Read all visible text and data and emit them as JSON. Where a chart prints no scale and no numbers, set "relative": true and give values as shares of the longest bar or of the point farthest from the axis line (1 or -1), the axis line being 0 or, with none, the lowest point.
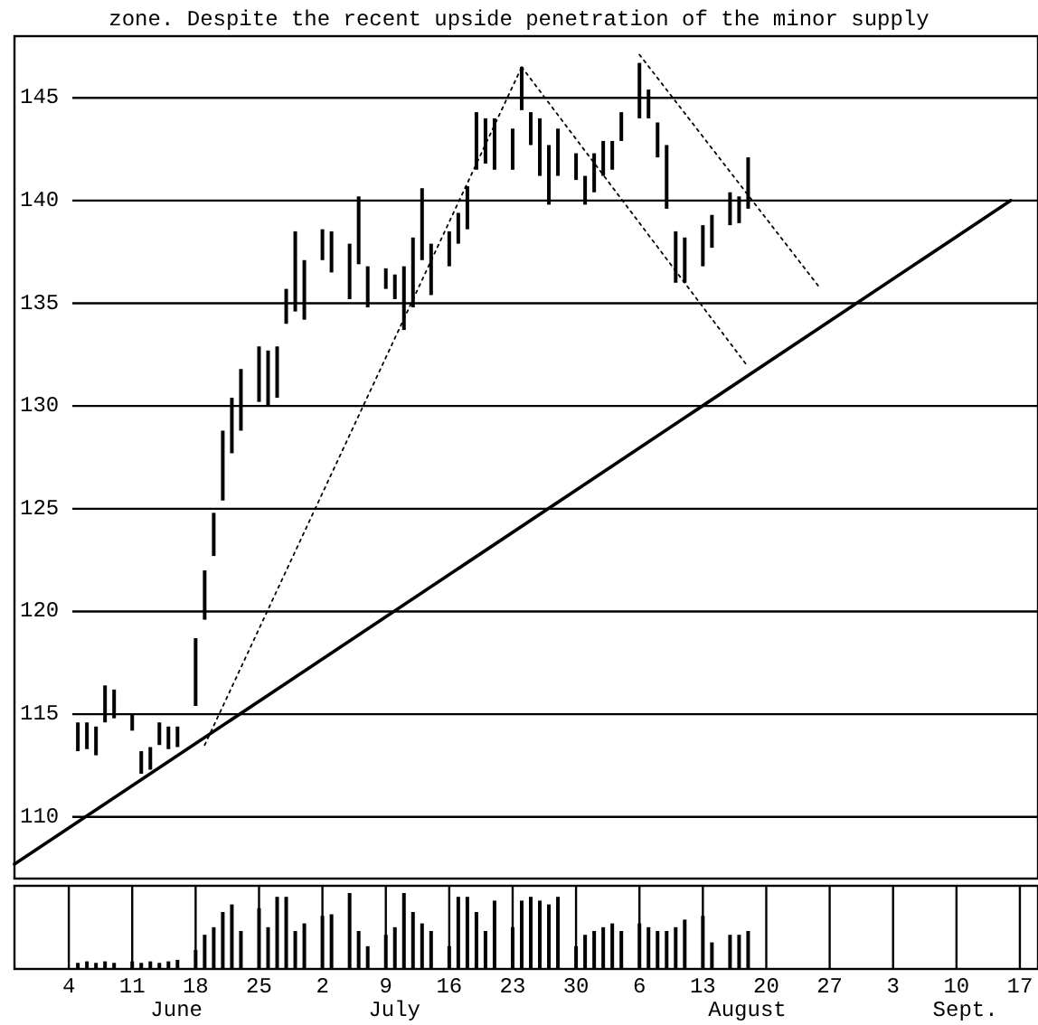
{
  "chart_data": [
    {
      "type": "bar",
      "annotations": [
        "zone. Despite the recent upside penetration of the minor supply"
      ],
      "x": [
        "--06-05",
        "--06-06",
        "--06-07",
        "--06-08",
        "--06-09",
        "--06-11",
        "--06-12",
        "--06-13",
        "--06-14",
        "--06-15",
        "--06-16",
        "--06-18",
        "--06-19",
        "--06-20",
        "--06-21",
        "--06-22",
        "--06-23",
        "--06-25",
        "--06-26",
        "--06-27",
        "--06-28",
        "--06-29",
        "--06-30",
        "--07-02",
        "--07-03",
        "--07-05",
        "--07-06",
        "--07-07",
        "--07-09",
        "--07-10",
        "--07-11",
        "--07-12",
        "--07-13",
        "--07-14",
        "--07-16",
        "--07-17",
        "--07-18",
        "--07-19",
        "--07-20",
        "--07-21",
        "--07-23",
        "--07-24",
        "--07-25",
        "--07-26",
        "--07-27",
        "--07-28",
        "--07-30",
        "--07-31",
        "--08-01",
        "--08-02",
        "--08-03",
        "--08-04",
        "--08-06",
        "--08-07",
        "--08-08",
        "--08-09",
        "--08-10",
        "--08-11",
        "--08-13",
        "--08-14",
        "--08-16",
        "--08-17",
        "--08-18"
      ],
      "series": [
        {
          "type": "bar",
          "color": "#000000",
          "base": [
            113.2,
            113.3,
            113.0,
            114.6,
            114.8,
            114.2,
            112.1,
            112.3,
            113.5,
            113.3,
            113.4,
            115.4,
            119.6,
            122.7,
            125.4,
            127.7,
            128.8,
            130.2,
            130.0,
            130.4,
            134.0,
            134.6,
            134.2,
            137.1,
            136.5,
            135.2,
            136.9,
            134.8,
            135.7,
            135.2,
            133.7,
            134.8,
            137.1,
            135.4,
            136.8,
            137.9,
            138.6,
            141.5,
            141.8,
            141.5,
            141.5,
            144.4,
            142.7,
            141.2,
            139.8,
            141.2,
            141.0,
            139.8,
            140.4,
            141.2,
            141.5,
            142.9,
            144.0,
            144.0,
            142.1,
            139.6,
            136.0,
            136.0,
            136.8,
            137.7,
            138.8,
            138.9,
            139.6
          ],
          "values": [
            1.4,
            1.3,
            1.4,
            1.8,
            1.4,
            0.8,
            1.1,
            1.1,
            1.1,
            1.1,
            1.0,
            3.3,
            2.4,
            2.1,
            3.4,
            2.7,
            3.0,
            2.7,
            2.7,
            2.5,
            1.7,
            3.9,
            2.9,
            1.5,
            2.0,
            2.7,
            3.3,
            2.0,
            1.0,
            1.2,
            3.1,
            3.4,
            3.5,
            2.5,
            1.7,
            1.5,
            2.1,
            2.8,
            2.2,
            2.5,
            2.0,
            2.1,
            1.6,
            2.8,
            2.9,
            2.3,
            1.3,
            1.4,
            1.9,
            1.7,
            1.4,
            1.4,
            2.7,
            1.4,
            1.7,
            3.1,
            2.5,
            2.2,
            2.0,
            1.6,
            1.6,
            1.3,
            2.5
          ]
        },
        {
          "type": "line",
          "color": "#000000",
          "line_style": "solid",
          "x": [
            "--05-29",
            "--09-16"
          ],
          "values": [
            107.7,
            140.0
          ]
        },
        {
          "type": "line",
          "color": "#000000",
          "line_style": "dotted",
          "x": [
            "--06-19",
            "--07-24"
          ],
          "values": [
            113.5,
            146.5
          ]
        },
        {
          "type": "line",
          "color": "#000000",
          "line_style": "dotted",
          "x": [
            "--07-24",
            "--08-18"
          ],
          "values": [
            146.5,
            131.9
          ]
        },
        {
          "type": "line",
          "color": "#000000",
          "line_style": "dotted",
          "x": [
            "--08-06",
            "--08-26"
          ],
          "values": [
            147.1,
            135.7
          ]
        }
      ],
      "xlim": [
        "--05-29",
        "--09-19"
      ],
      "ylim": [
        107,
        148
      ],
      "yticks": [
        110,
        115,
        120,
        125,
        130,
        135,
        140,
        145
      ],
      "grid": true,
      "tick_labels": "y"
    },
    {
      "type": "bar",
      "relative": true,
      "grid": "x",
      "tick_labels": "x",
      "annotations": [
        "June",
        "July",
        "August",
        "Sept."
      ],
      "x": [
        "--06-05",
        "--06-06",
        "--06-07",
        "--06-08",
        "--06-09",
        "--06-11",
        "--06-12",
        "--06-13",
        "--06-14",
        "--06-15",
        "--06-16",
        "--06-18",
        "--06-19",
        "--06-20",
        "--06-21",
        "--06-22",
        "--06-23",
        "--06-25",
        "--06-26",
        "--06-27",
        "--06-28",
        "--06-29",
        "--06-30",
        "--07-02",
        "--07-03",
        "--07-05",
        "--07-06",
        "--07-07",
        "--07-09",
        "--07-10",
        "--07-11",
        "--07-12",
        "--07-13",
        "--07-14",
        "--07-16",
        "--07-17",
        "--07-18",
        "--07-19",
        "--07-20",
        "--07-21",
        "--07-23",
        "--07-24",
        "--07-25",
        "--07-26",
        "--07-27",
        "--07-28",
        "--07-30",
        "--07-31",
        "--08-01",
        "--08-02",
        "--08-03",
        "--08-04",
        "--08-06",
        "--08-07",
        "--08-08",
        "--08-09",
        "--08-10",
        "--08-11",
        "--08-13",
        "--08-14",
        "--08-16",
        "--08-17",
        "--08-18"
      ],
      "color": "#000000",
      "values": [
        0.08,
        0.1,
        0.08,
        0.1,
        0.08,
        0.1,
        0.08,
        0.1,
        0.08,
        0.1,
        0.12,
        0.25,
        0.45,
        0.55,
        0.75,
        0.85,
        0.5,
        0.8,
        0.55,
        0.95,
        0.95,
        0.5,
        0.6,
        0.7,
        0.72,
        1.0,
        0.5,
        0.3,
        0.45,
        0.55,
        1.0,
        0.75,
        0.6,
        0.5,
        0.3,
        0.95,
        0.95,
        0.75,
        0.5,
        0.9,
        0.55,
        0.9,
        0.95,
        0.9,
        0.85,
        0.95,
        0.3,
        0.45,
        0.5,
        0.55,
        0.6,
        0.5,
        0.6,
        0.55,
        0.5,
        0.5,
        0.55,
        0.65,
        0.7,
        0.35,
        0.45,
        0.45,
        0.5
      ],
      "xlim": [
        "--05-29",
        "--09-19"
      ],
      "xticks": [
        {
          "value": "--06-04",
          "label": "4"
        },
        {
          "value": "--06-11",
          "label": "11"
        },
        {
          "value": "--06-18",
          "label": "18"
        },
        {
          "value": "--06-25",
          "label": "25"
        },
        {
          "value": "--07-02",
          "label": "2"
        },
        {
          "value": "--07-09",
          "label": "9"
        },
        {
          "value": "--07-16",
          "label": "16"
        },
        {
          "value": "--07-23",
          "label": "23"
        },
        {
          "value": "--07-30",
          "label": "30"
        },
        {
          "value": "--08-06",
          "label": "6"
        },
        {
          "value": "--08-13",
          "label": "13"
        },
        {
          "value": "--08-20",
          "label": "20"
        },
        {
          "value": "--08-27",
          "label": "27"
        },
        {
          "value": "--09-03",
          "label": "3"
        },
        {
          "value": "--09-10",
          "label": "10"
        },
        {
          "value": "--09-17",
          "label": "17"
        }
      ]
    }
  ]
}
